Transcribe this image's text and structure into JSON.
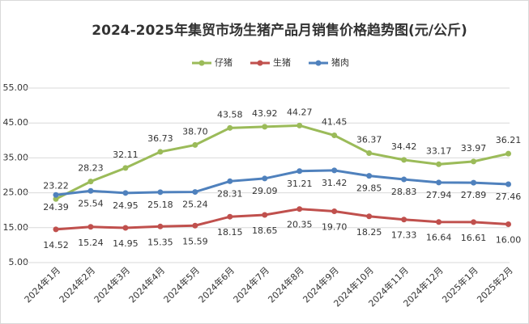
{
  "chart_data": {
    "type": "line",
    "title": "2024-2025年集贸市场生猪产品月销售价格趋势图(元/公斤)",
    "categories": [
      "2024年1月",
      "2024年2月",
      "2024年3月",
      "2024年4月",
      "2024年5月",
      "2024年6月",
      "2024年7月",
      "2024年8月",
      "2024年9月",
      "2024年10月",
      "2024年11月",
      "2024年12月",
      "2025年1月",
      "2025年2月"
    ],
    "series": [
      {
        "name": "仔猪",
        "color": "#9bbb59",
        "values": [
          23.22,
          28.23,
          32.11,
          36.73,
          38.7,
          43.58,
          43.92,
          44.27,
          41.45,
          36.37,
          34.42,
          33.17,
          33.97,
          36.21
        ],
        "value_labels": [
          "23.22",
          "28.23",
          "32.11",
          "36.73",
          "38.70",
          "43.58",
          "43.92",
          "44.27",
          "41.45",
          "36.37",
          "34.42",
          "33.17",
          "33.97",
          "36.21"
        ]
      },
      {
        "name": "生猪",
        "color": "#c0504d",
        "values": [
          14.52,
          15.24,
          14.95,
          15.35,
          15.59,
          18.15,
          18.65,
          20.35,
          19.7,
          18.25,
          17.33,
          16.64,
          16.61,
          16
        ],
        "value_labels": [
          "14.52",
          "15.24",
          "14.95",
          "15.35",
          "15.59",
          "18.15",
          "18.65",
          "20.35",
          "19.70",
          "18.25",
          "17.33",
          "16.64",
          "16.61",
          "16.00"
        ]
      },
      {
        "name": "猪肉",
        "color": "#4f81bd",
        "values": [
          24.39,
          25.54,
          24.95,
          25.18,
          25.24,
          28.31,
          29.09,
          31.21,
          31.42,
          29.85,
          28.83,
          27.94,
          27.89,
          27.46
        ],
        "value_labels": [
          "24.39",
          "25.54",
          "24.95",
          "25.18",
          "25.24",
          "28.31",
          "29.09",
          "31.21",
          "31.42",
          "29.85",
          "28.83",
          "27.94",
          "27.89",
          "27.46"
        ]
      }
    ],
    "ylim": [
      5,
      55
    ],
    "yticks": [
      {
        "value": 5,
        "label": "5.00"
      },
      {
        "value": 15,
        "label": "15.00"
      },
      {
        "value": 25,
        "label": "25.00"
      },
      {
        "value": 35,
        "label": "35.00"
      },
      {
        "value": 45,
        "label": "45.00"
      },
      {
        "value": 55,
        "label": "55.00"
      }
    ],
    "grid": true,
    "legend": "top"
  }
}
